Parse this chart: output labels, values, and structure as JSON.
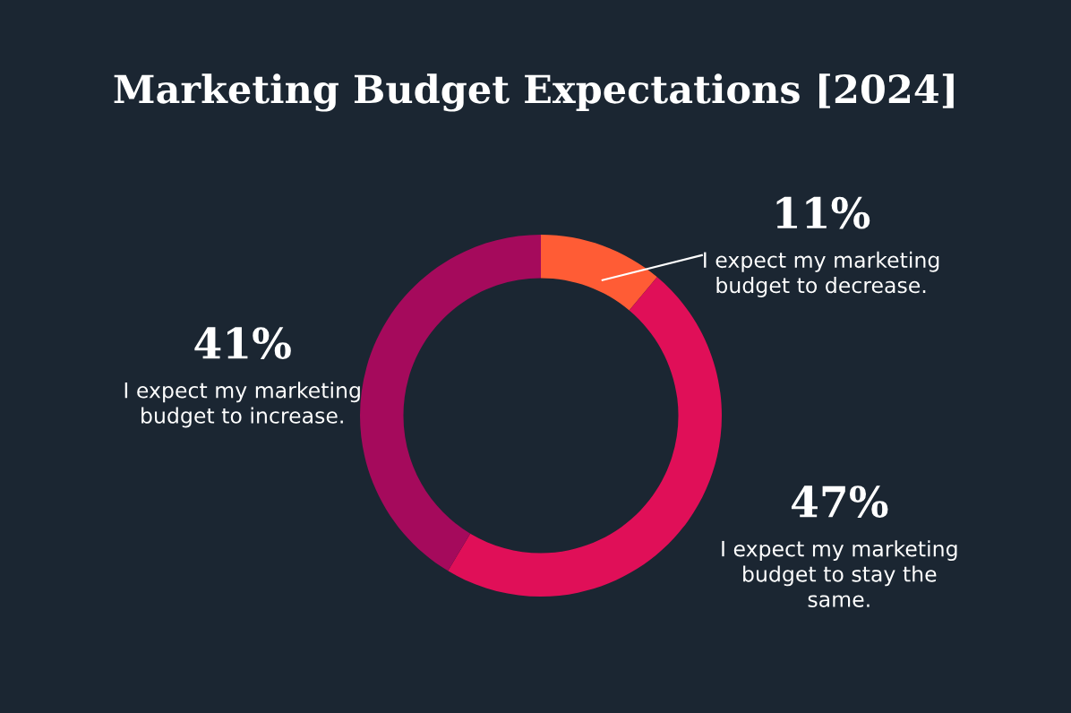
{
  "chart_data": {
    "type": "donut",
    "title": "Marketing Budget Expectations [2024]",
    "categories": [
      "I expect my marketing budget to decrease.",
      "I expect my marketing budget to stay the same.",
      "I expect my marketing budget to increase."
    ],
    "values": [
      11,
      47,
      41
    ],
    "value_labels": [
      "11%",
      "47%",
      "41%"
    ],
    "colors": [
      "#ff5c35",
      "#e00f58",
      "#a50a5c"
    ]
  }
}
